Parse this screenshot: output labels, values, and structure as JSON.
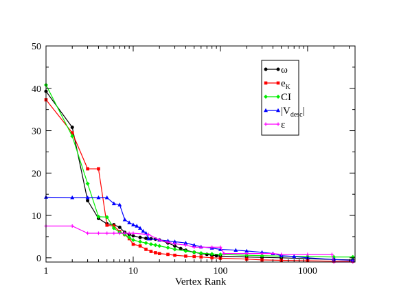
{
  "chart_data": {
    "type": "line",
    "title": "",
    "xlabel": "Vertex Rank",
    "ylabel": "",
    "x_scale": "log",
    "xlim": [
      1,
      3500
    ],
    "ylim": [
      -1,
      50
    ],
    "x_ticks": [
      {
        "value": 1,
        "label": "1"
      },
      {
        "value": 10,
        "label": "10"
      },
      {
        "value": 100,
        "label": "100"
      },
      {
        "value": 1000,
        "label": "1000"
      }
    ],
    "y_ticks": [
      {
        "value": 0,
        "label": "0"
      },
      {
        "value": 10,
        "label": "10"
      },
      {
        "value": 20,
        "label": "20"
      },
      {
        "value": 30,
        "label": "30"
      },
      {
        "value": 40,
        "label": "40"
      },
      {
        "value": 50,
        "label": "50"
      }
    ],
    "legend_position": "top-right",
    "series": [
      {
        "name": "ω",
        "label_main": "ω",
        "label_sub": "",
        "label_tail": "",
        "color": "#000000",
        "marker": "circle",
        "x": [
          1,
          2,
          3,
          4,
          5,
          6,
          7,
          8,
          9,
          10,
          12,
          14,
          16,
          18,
          20,
          25,
          30,
          35,
          40,
          50,
          60,
          70,
          80,
          90,
          100,
          200,
          300,
          500,
          1000,
          2000,
          3300
        ],
        "y": [
          39.3,
          30.8,
          13.5,
          9.3,
          8,
          7.8,
          7.2,
          6,
          5.5,
          5.2,
          4.8,
          4.6,
          4.5,
          4.4,
          4.2,
          3.5,
          2.8,
          2.2,
          1.8,
          1.3,
          1.0,
          0.8,
          0.6,
          0.5,
          0.4,
          0.2,
          0.1,
          0.0,
          -0.2,
          -0.4,
          -0.5
        ]
      },
      {
        "name": "eK",
        "label_main": "e",
        "label_sub": "K",
        "label_tail": "",
        "color": "#ff0000",
        "marker": "square",
        "x": [
          1,
          2,
          3,
          4,
          5,
          6,
          7,
          8,
          9,
          10,
          12,
          14,
          16,
          18,
          20,
          25,
          30,
          40,
          50,
          60,
          80,
          100,
          200,
          300,
          500,
          1000,
          2000,
          3300
        ],
        "y": [
          37.3,
          29.5,
          21,
          21,
          7.7,
          7.5,
          6.2,
          5.5,
          4.5,
          3.2,
          2.8,
          2.0,
          1.5,
          1.2,
          1.0,
          0.8,
          0.6,
          0.4,
          0.3,
          0.2,
          0.0,
          -0.1,
          -0.3,
          -0.5,
          -0.6,
          -0.7,
          -0.8,
          -0.8
        ]
      },
      {
        "name": "CI",
        "label_main": "CI",
        "label_sub": "",
        "label_tail": "",
        "color": "#00ee00",
        "marker": "diamond",
        "x": [
          1,
          2,
          3,
          4,
          5,
          6,
          7,
          8,
          9,
          10,
          12,
          14,
          16,
          18,
          20,
          25,
          30,
          40,
          50,
          60,
          80,
          100,
          200,
          300,
          500,
          1000,
          2000,
          3300
        ],
        "y": [
          40.8,
          28.7,
          17.5,
          9.7,
          9.6,
          7.0,
          6.0,
          5.5,
          4.8,
          4.2,
          3.8,
          3.5,
          3.2,
          3.0,
          2.8,
          2.4,
          2.0,
          1.6,
          1.3,
          1.1,
          0.9,
          0.8,
          0.6,
          0.5,
          0.4,
          0.3,
          0.2,
          0.2
        ]
      },
      {
        "name": "|Vdesc|",
        "label_main": "|V",
        "label_sub": "desc",
        "label_tail": "|",
        "color": "#0000ff",
        "marker": "triangle",
        "x": [
          1,
          2,
          3,
          4,
          5,
          6,
          7,
          8,
          9,
          10,
          11,
          12,
          13,
          14,
          15,
          20,
          25,
          30,
          40,
          50,
          60,
          80,
          100,
          150,
          200,
          300,
          400,
          500,
          700,
          1000,
          2000,
          3300
        ],
        "y": [
          14.3,
          14.2,
          14.2,
          14.2,
          14.2,
          12.8,
          12.5,
          9.0,
          8.3,
          7.8,
          7.5,
          7.0,
          6.3,
          5.8,
          4.5,
          4.2,
          4.0,
          3.8,
          3.5,
          3.0,
          2.6,
          2.3,
          2.0,
          1.8,
          1.6,
          1.3,
          1.0,
          0.5,
          0.3,
          0.0,
          -0.4,
          -0.6
        ]
      },
      {
        "name": "ε",
        "label_main": "ε",
        "label_sub": "",
        "label_tail": "",
        "color": "#ff00ff",
        "marker": "cross",
        "x": [
          1,
          2,
          3,
          4,
          5,
          6,
          7,
          8,
          9,
          10,
          15,
          20,
          25,
          30,
          40,
          50,
          60,
          80,
          100,
          110,
          200,
          300,
          400,
          500,
          1000,
          1900,
          2000,
          3300
        ],
        "y": [
          7.5,
          7.5,
          5.8,
          5.8,
          5.8,
          5.8,
          5.8,
          5.8,
          5.8,
          5.8,
          5.5,
          4.2,
          3.7,
          3.3,
          3.0,
          2.5,
          2.5,
          2.5,
          2.5,
          1.0,
          1.0,
          1.0,
          1.0,
          0.8,
          0.8,
          0.8,
          -1.0,
          -1.0
        ]
      }
    ]
  }
}
